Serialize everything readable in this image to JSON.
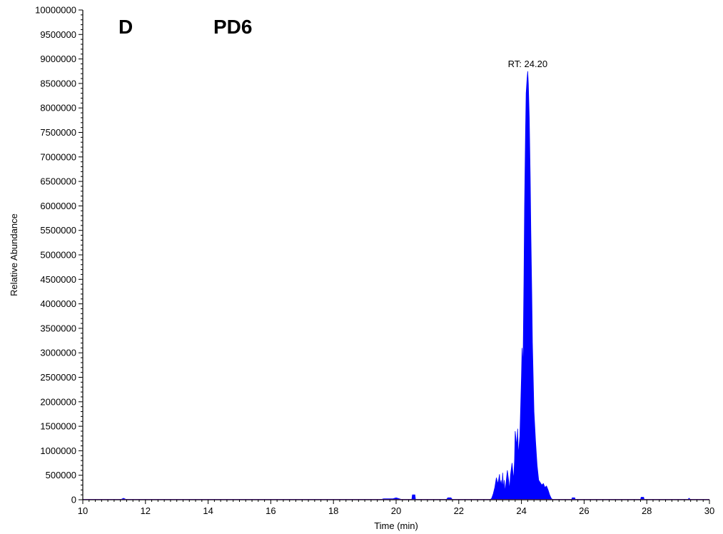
{
  "panel_label": "D",
  "sample_label": "PD6",
  "chart_data": {
    "type": "area",
    "xlabel": "Time (min)",
    "ylabel": "Relative Abundance",
    "xlim": [
      10,
      30
    ],
    "ylim": [
      0,
      10000000
    ],
    "x_ticks": [
      "10",
      "12",
      "14",
      "16",
      "18",
      "20",
      "22",
      "24",
      "26",
      "28",
      "30"
    ],
    "y_ticks": [
      "0",
      "500000",
      "1000000",
      "1500000",
      "2000000",
      "2500000",
      "3000000",
      "3500000",
      "4000000",
      "4500000",
      "5000000",
      "5500000",
      "6000000",
      "6500000",
      "7000000",
      "7500000",
      "8000000",
      "8500000",
      "9000000",
      "9500000",
      "10000000"
    ],
    "annotation": "RT: 24.20",
    "annotation_x": 24.2,
    "peak_max": 8750000,
    "colors": {
      "trace": "#0000ff",
      "baseline": "#9b30ff",
      "axis": "#000000"
    },
    "series": [
      {
        "x": [
          10.0,
          11.2,
          11.3,
          11.4,
          19.5,
          19.6,
          19.9,
          20.0,
          20.2,
          20.5,
          20.52,
          20.6,
          20.62,
          20.7,
          21.6,
          21.65,
          21.75,
          21.8,
          23.0,
          23.05,
          23.1,
          23.15,
          23.2,
          23.25,
          23.3,
          23.32,
          23.35,
          23.38,
          23.4,
          23.43,
          23.45,
          23.48,
          23.5,
          23.55,
          23.6,
          23.62,
          23.65,
          23.7,
          23.75,
          23.78,
          23.8,
          23.85,
          23.88,
          23.9,
          23.95,
          24.0,
          24.02,
          24.05,
          24.08,
          24.1,
          24.13,
          24.15,
          24.18,
          24.2,
          24.22,
          24.25,
          24.28,
          24.3,
          24.33,
          24.35,
          24.4,
          24.45,
          24.5,
          24.55,
          24.6,
          24.65,
          24.7,
          24.75,
          24.8,
          24.85,
          24.9,
          24.95,
          25.0,
          25.6,
          25.62,
          25.7,
          25.72,
          27.8,
          27.82,
          27.9,
          27.92,
          29.3,
          29.35,
          29.4,
          30.0
        ],
        "y": [
          0,
          0,
          30000,
          0,
          0,
          20000,
          20000,
          40000,
          0,
          0,
          100000,
          100000,
          0,
          0,
          0,
          40000,
          40000,
          0,
          0,
          30000,
          120000,
          250000,
          450000,
          320000,
          520000,
          300000,
          400000,
          250000,
          550000,
          200000,
          400000,
          150000,
          300000,
          600000,
          350000,
          200000,
          500000,
          750000,
          400000,
          800000,
          1400000,
          1100000,
          1450000,
          900000,
          1300000,
          2500000,
          3100000,
          2700000,
          4500000,
          6000000,
          7500000,
          8300000,
          8600000,
          8750000,
          8500000,
          7800000,
          6600000,
          5500000,
          4200000,
          3200000,
          1800000,
          1200000,
          700000,
          400000,
          350000,
          300000,
          330000,
          250000,
          280000,
          200000,
          100000,
          30000,
          0,
          0,
          40000,
          40000,
          0,
          0,
          50000,
          50000,
          0,
          0,
          30000,
          0,
          0
        ]
      }
    ]
  }
}
